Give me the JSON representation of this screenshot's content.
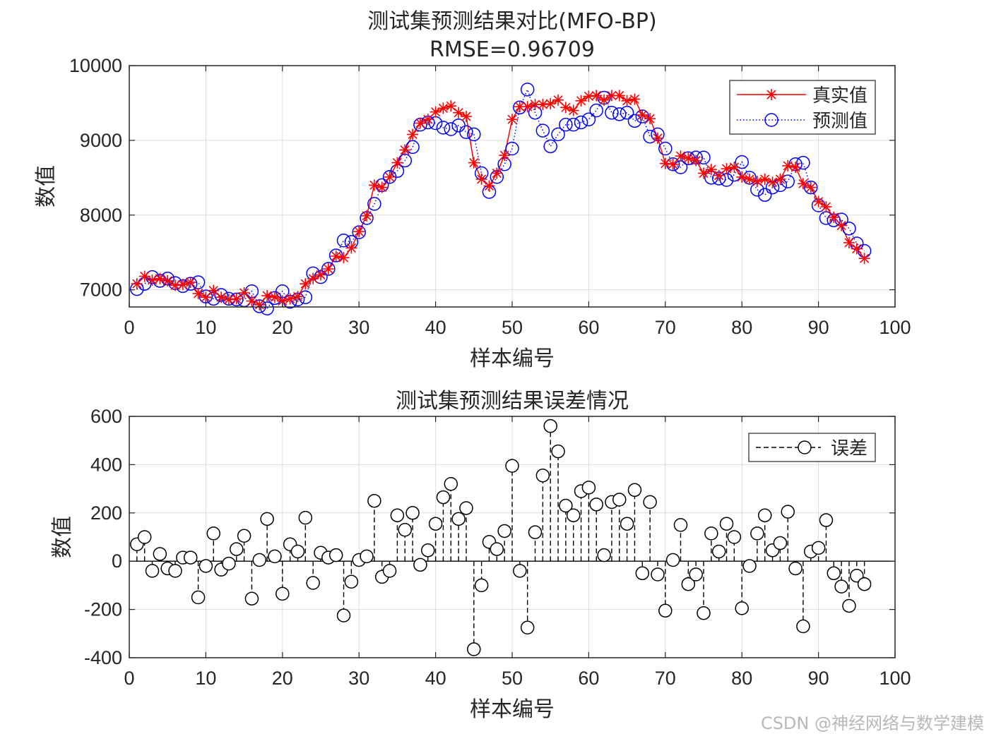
{
  "colors": {
    "true_series": "#ff0000",
    "pred_series": "#0000ff",
    "error_series": "#000000",
    "grid": "#dcdcdc",
    "axis": "#262626"
  },
  "chart_data": [
    {
      "type": "line",
      "title": "测试集预测结果对比(MFO-BP)",
      "subtitle": "RMSE=0.96709",
      "xlabel": "样本编号",
      "ylabel": "数值",
      "xlim": [
        0,
        100
      ],
      "ylim": [
        6770,
        10000
      ],
      "xticks": [
        0,
        10,
        20,
        30,
        40,
        50,
        60,
        70,
        80,
        90,
        100
      ],
      "yticks": [
        7000,
        8000,
        9000,
        10000
      ],
      "grid": true,
      "legend_position": "top-right",
      "x": [
        1,
        2,
        3,
        4,
        5,
        6,
        7,
        8,
        9,
        10,
        11,
        12,
        13,
        14,
        15,
        16,
        17,
        18,
        19,
        20,
        21,
        22,
        23,
        24,
        25,
        26,
        27,
        28,
        29,
        30,
        31,
        32,
        33,
        34,
        35,
        36,
        37,
        38,
        39,
        40,
        41,
        42,
        43,
        44,
        45,
        46,
        47,
        48,
        49,
        50,
        51,
        52,
        53,
        54,
        55,
        56,
        57,
        58,
        59,
        60,
        61,
        62,
        63,
        64,
        65,
        66,
        67,
        68,
        69,
        70,
        71,
        72,
        73,
        74,
        75,
        76,
        77,
        78,
        79,
        80,
        81,
        82,
        83,
        84,
        85,
        86,
        87,
        88,
        89,
        90,
        91,
        92,
        93,
        94,
        95,
        96
      ],
      "series": [
        {
          "name": "真实值",
          "style": "red solid line with asterisk markers",
          "values": [
            7080,
            7180,
            7130,
            7150,
            7120,
            7060,
            7070,
            7100,
            6950,
            6900,
            6990,
            6900,
            6870,
            6880,
            6960,
            6850,
            6800,
            6920,
            6900,
            6850,
            6880,
            6910,
            7080,
            7150,
            7200,
            7280,
            7450,
            7430,
            7560,
            7780,
            7990,
            8400,
            8370,
            8510,
            8700,
            8870,
            9080,
            9230,
            9280,
            9380,
            9430,
            9460,
            9370,
            9320,
            8700,
            8480,
            8390,
            8560,
            8800,
            9280,
            9450,
            9450,
            9480,
            9480,
            9490,
            9540,
            9440,
            9400,
            9530,
            9590,
            9600,
            9540,
            9600,
            9600,
            9530,
            9550,
            9340,
            9290,
            9030,
            8690,
            8680,
            8790,
            8760,
            8730,
            8560,
            8610,
            8530,
            8620,
            8640,
            8510,
            8480,
            8450,
            8480,
            8440,
            8480,
            8660,
            8640,
            8420,
            8370,
            8180,
            8110,
            7970,
            7860,
            7630,
            7550,
            7420
          ]
        },
        {
          "name": "预测值",
          "style": "blue dotted line with circle markers",
          "values": [
            7010,
            7080,
            7170,
            7120,
            7150,
            7090,
            7050,
            7080,
            7100,
            6910,
            6880,
            6930,
            6880,
            6870,
            6860,
            6980,
            6780,
            6750,
            6890,
            6980,
            6840,
            6870,
            6900,
            7220,
            7170,
            7280,
            7460,
            7660,
            7640,
            7770,
            7960,
            8150,
            8400,
            8510,
            8590,
            8730,
            8910,
            9210,
            9240,
            9230,
            9170,
            9150,
            9200,
            9110,
            9080,
            8560,
            8310,
            8510,
            8680,
            8890,
            9440,
            9680,
            9370,
            9130,
            8920,
            9080,
            9210,
            9210,
            9240,
            9280,
            9400,
            9570,
            9370,
            9350,
            9370,
            9260,
            9320,
            9050,
            9080,
            8890,
            8680,
            8640,
            8760,
            8770,
            8770,
            8500,
            8490,
            8470,
            8540,
            8710,
            8500,
            8340,
            8270,
            8370,
            8400,
            8450,
            8680,
            8700,
            8370,
            8130,
            7960,
            7930,
            7940,
            7820,
            7620,
            7520
          ]
        }
      ]
    },
    {
      "type": "stem",
      "title": "测试集预测结果误差情况",
      "xlabel": "样本编号",
      "ylabel": "数值",
      "xlim": [
        0,
        100
      ],
      "ylim": [
        -400,
        600
      ],
      "xticks": [
        0,
        10,
        20,
        30,
        40,
        50,
        60,
        70,
        80,
        90,
        100
      ],
      "yticks": [
        -400,
        -200,
        0,
        200,
        400,
        600
      ],
      "grid": true,
      "legend_position": "top-right",
      "x": [
        1,
        2,
        3,
        4,
        5,
        6,
        7,
        8,
        9,
        10,
        11,
        12,
        13,
        14,
        15,
        16,
        17,
        18,
        19,
        20,
        21,
        22,
        23,
        24,
        25,
        26,
        27,
        28,
        29,
        30,
        31,
        32,
        33,
        34,
        35,
        36,
        37,
        38,
        39,
        40,
        41,
        42,
        43,
        44,
        45,
        46,
        47,
        48,
        49,
        50,
        51,
        52,
        53,
        54,
        55,
        56,
        57,
        58,
        59,
        60,
        61,
        62,
        63,
        64,
        65,
        66,
        67,
        68,
        69,
        70,
        71,
        72,
        73,
        74,
        75,
        76,
        77,
        78,
        79,
        80,
        81,
        82,
        83,
        84,
        85,
        86,
        87,
        88,
        89,
        90,
        91,
        92,
        93,
        94,
        95,
        96
      ],
      "series": [
        {
          "name": "误差",
          "style": "black dashed stems with circle markers",
          "values": [
            70,
            100,
            -40,
            30,
            -30,
            -40,
            15,
            15,
            -150,
            -20,
            115,
            -35,
            -10,
            50,
            105,
            -155,
            5,
            175,
            20,
            -135,
            70,
            40,
            180,
            -90,
            35,
            15,
            25,
            -225,
            -85,
            5,
            20,
            250,
            -65,
            -40,
            190,
            130,
            200,
            -15,
            45,
            155,
            265,
            320,
            175,
            220,
            -365,
            -100,
            80,
            50,
            125,
            395,
            -40,
            -275,
            120,
            355,
            560,
            455,
            230,
            190,
            290,
            305,
            235,
            25,
            245,
            255,
            155,
            295,
            -50,
            245,
            -55,
            -205,
            5,
            150,
            -95,
            -55,
            -215,
            115,
            40,
            155,
            100,
            -195,
            -20,
            115,
            190,
            45,
            75,
            205,
            -30,
            -270,
            40,
            55,
            170,
            -50,
            -105,
            -185,
            -60,
            -95
          ]
        }
      ]
    }
  ],
  "watermark": "CSDN @神经网络与数学建模"
}
